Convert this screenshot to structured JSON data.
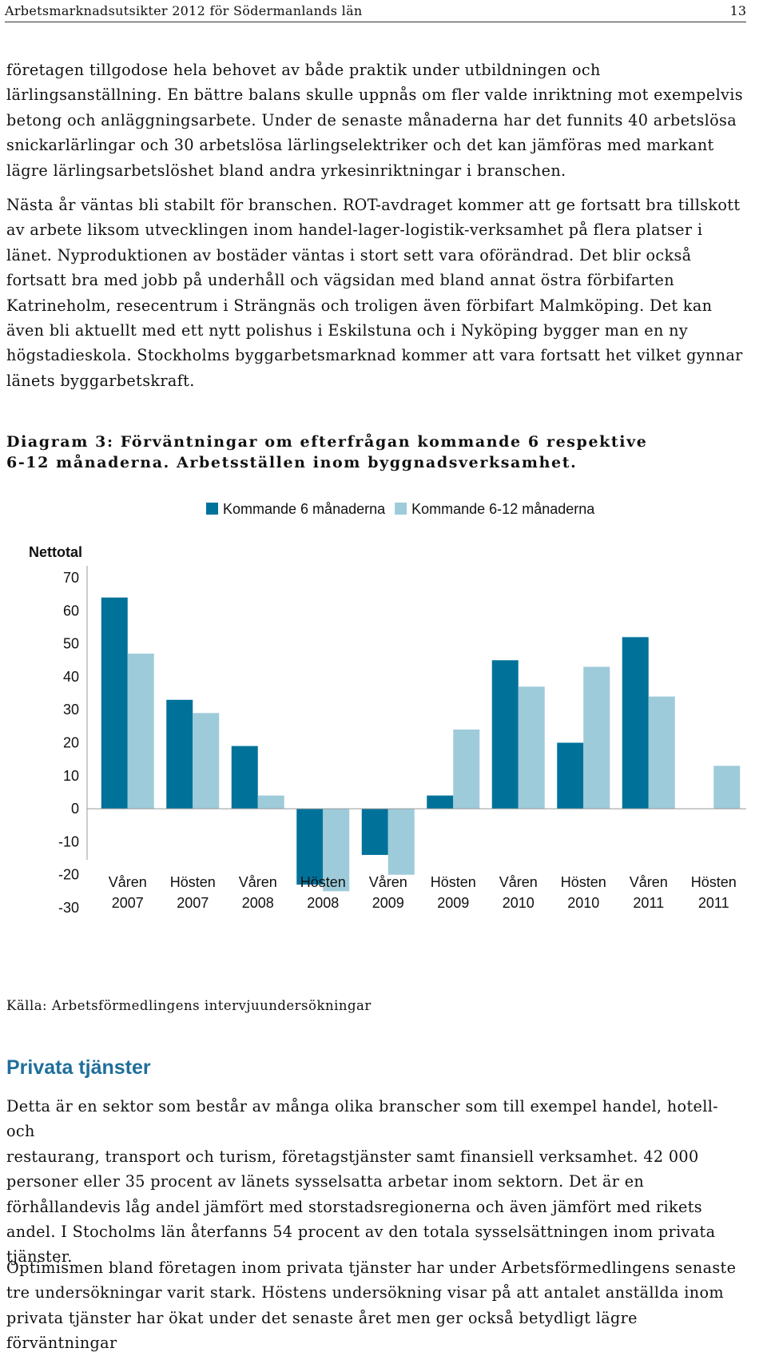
{
  "header": {
    "title": "Arbetsmarknadsutsikter 2012 för Södermanlands län",
    "page_number": "13"
  },
  "paragraphs": [
    "företagen tillgodose hela behovet av både praktik under utbildningen och\nlärlingsanställning. En bättre balans skulle uppnås om fler valde inriktning mot exempelvis\nbetong och anläggningsarbete. Under de senaste månaderna har det funnits 40 arbetslösa\nsnickarlärlingar och 30 arbetslösa lärlingselektriker och det kan jämföras med markant\nlägre lärlingsarbetslöshet bland andra yrkesinriktningar i branschen.",
    "Nästa år väntas bli stabilt för branschen. ROT-avdraget kommer att ge fortsatt bra tillskott\nav arbete liksom utvecklingen inom handel-lager-logistik-verksamhet på flera platser i\nlänet. Nyproduktionen av bostäder väntas i stort sett vara oförändrad. Det blir också\nfortsatt bra med jobb på underhåll och vägsidan med bland annat östra förbifarten\nKatrineholm, resecentrum i Strängnäs och troligen även förbifart Malmköping. Det kan\näven bli aktuellt med ett nytt polishus i Eskilstuna och i Nyköping bygger man en ny\nhögstadieskola. Stockholms byggarbetsmarknad kommer att vara fortsatt het vilket gynnar\nlänets byggarbetskraft."
  ],
  "diagram_title": "Diagram 3: Förväntningar om efterfrågan kommande 6 respektive\n6-12 månaderna. Arbetsställen inom byggnadsverksamhet.",
  "chart_data": {
    "type": "bar",
    "ylabel": "Nettotal",
    "ylim": [
      -30,
      70
    ],
    "yticks": [
      "70",
      "60",
      "50",
      "40",
      "30",
      "20",
      "10",
      "0",
      "-10",
      "-20",
      "-30"
    ],
    "categories": [
      [
        "Våren",
        "2007"
      ],
      [
        "Hösten",
        "2007"
      ],
      [
        "Våren",
        "2008"
      ],
      [
        "Hösten",
        "2008"
      ],
      [
        "Våren",
        "2009"
      ],
      [
        "Hösten",
        "2009"
      ],
      [
        "Våren",
        "2010"
      ],
      [
        "Hösten",
        "2010"
      ],
      [
        "Våren",
        "2011"
      ],
      [
        "Hösten",
        "2011"
      ]
    ],
    "series": [
      {
        "name": "Kommande 6 månaderna",
        "color": "#00729a",
        "values": [
          64,
          33,
          19,
          -23,
          -14,
          4,
          45,
          20,
          52,
          null
        ]
      },
      {
        "name": "Kommande 6-12 månaderna",
        "color": "#9ecbd9",
        "values": [
          47,
          29,
          4,
          -25,
          -20,
          24,
          37,
          43,
          34,
          13
        ]
      }
    ],
    "legend_position": "top",
    "grid": false
  },
  "source": "Källa: Arbetsförmedlingens intervjuundersökningar",
  "section": {
    "heading": "Privata tjänster",
    "paragraphs": [
      "Detta är en sektor som består av många olika branscher som till exempel handel, hotell- och\nrestaurang, transport och turism, företagstjänster samt finansiell verksamhet. 42 000\npersoner eller 35 procent av länets sysselsatta arbetar inom sektorn. Det är en\nförhållandevis låg andel jämfört med storstadsregionerna och även jämfört med rikets\nandel. I Stocholms län återfanns 54 procent av den totala sysselsättningen inom privata\ntjänster.",
      "Optimismen bland företagen inom privata tjänster har under Arbetsförmedlingens senaste\ntre undersökningar varit stark. Höstens undersökning visar på att antalet anställda inom\nprivata tjänster har ökat under det senaste året men ger också betydligt lägre förväntningar"
    ]
  }
}
